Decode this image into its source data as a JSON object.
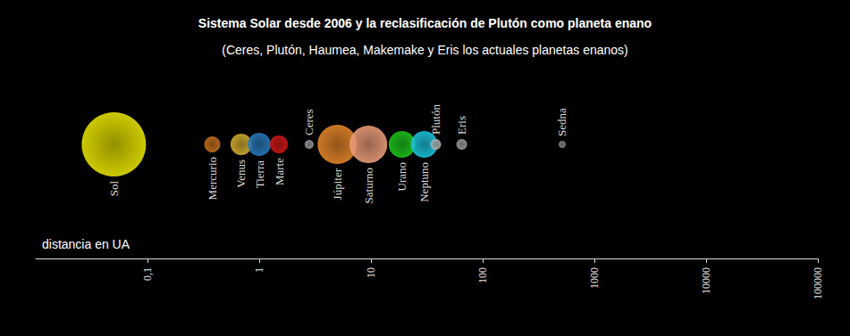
{
  "chart_data": {
    "type": "scatter",
    "title": "Sistema Solar desde 2006 y la reclasificación de Plutón como planeta enano",
    "subtitle": "(Ceres, Plutón, Haumea, Makemake y Eris los actuales planetas enanos)",
    "x_label": "distancia en UA",
    "categories": [
      "Sol",
      "Mercurio",
      "Venus",
      "Tierra",
      "Marte",
      "Ceres",
      "Júpiter",
      "Saturno",
      "Urano",
      "Neptuno",
      "Plutón",
      "Eris",
      "Sedna"
    ],
    "x": [
      0.05,
      0.38,
      0.69,
      1,
      1.5,
      2.8,
      5,
      9.5,
      19,
      30,
      38,
      65,
      515
    ],
    "diameters": [
      72,
      18,
      24,
      26,
      20,
      10,
      44,
      42,
      30,
      30,
      12,
      12,
      8
    ],
    "colors": [
      "#e8e400",
      "#c8701c",
      "#d8b030",
      "#2a7cc0",
      "#d41818",
      "#a0a0a0",
      "#e8882a",
      "#f0a07c",
      "#1ec81e",
      "#1cc8e0",
      "#b4b4b4",
      "#a0a0a0",
      "#8c8c8c"
    ],
    "log": "x",
    "xlim": [
      0.01,
      100000
    ],
    "xticks": [
      {
        "value": 0.1,
        "label": "0,1"
      },
      1,
      10,
      100,
      1000,
      10000,
      100000
    ],
    "grid": false,
    "tick_labels": "x"
  }
}
